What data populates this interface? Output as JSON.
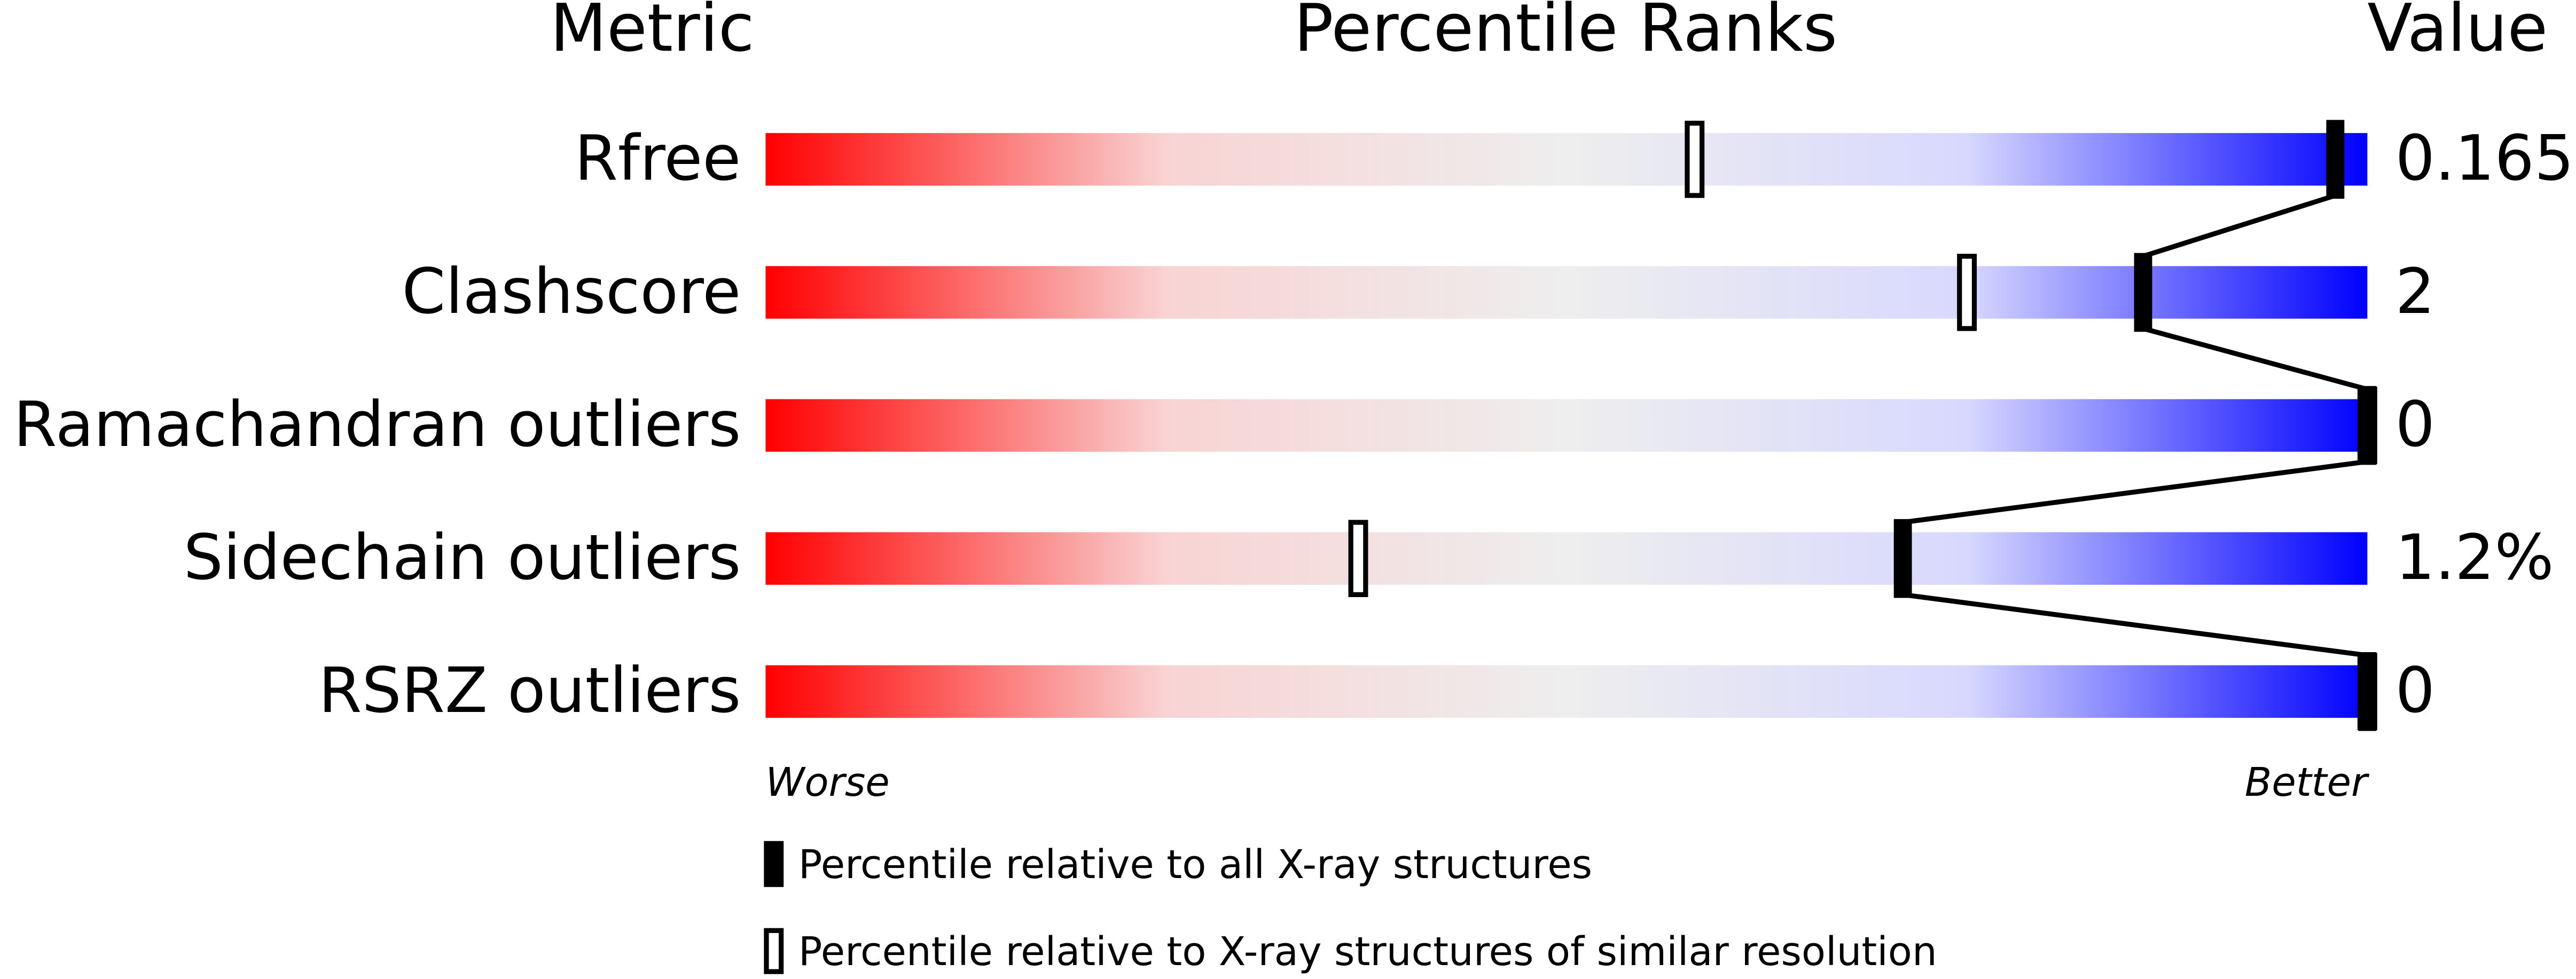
{
  "chart_data": {
    "type": "percentile",
    "headers": [
      "Metric",
      "Percentile Ranks",
      "Value"
    ],
    "categories": [
      "Rfree",
      "Clashscore",
      "Ramachandran outliers",
      "Sidechain outliers",
      "RSRZ outliers"
    ],
    "metric_values": [
      "0.165",
      "2",
      "0",
      "1.2%",
      "0"
    ],
    "xlim": [
      0,
      100
    ],
    "x_end_labels": [
      "Worse",
      "Better"
    ],
    "series": [
      {
        "name": "Percentile relative to all X-ray structures",
        "color": "#000000",
        "marker": "filled",
        "values": [
          98,
          86,
          100,
          71,
          100
        ]
      },
      {
        "name": "Percentile relative to X-ray structures of similar resolution",
        "color": "#000000",
        "marker": "hollow",
        "values": [
          58,
          75,
          100,
          37,
          100
        ]
      }
    ],
    "gradient": [
      "#ff0000",
      "#f9d3d3",
      "#eeeeee",
      "#d8d8ff",
      "#0000ff"
    ]
  }
}
